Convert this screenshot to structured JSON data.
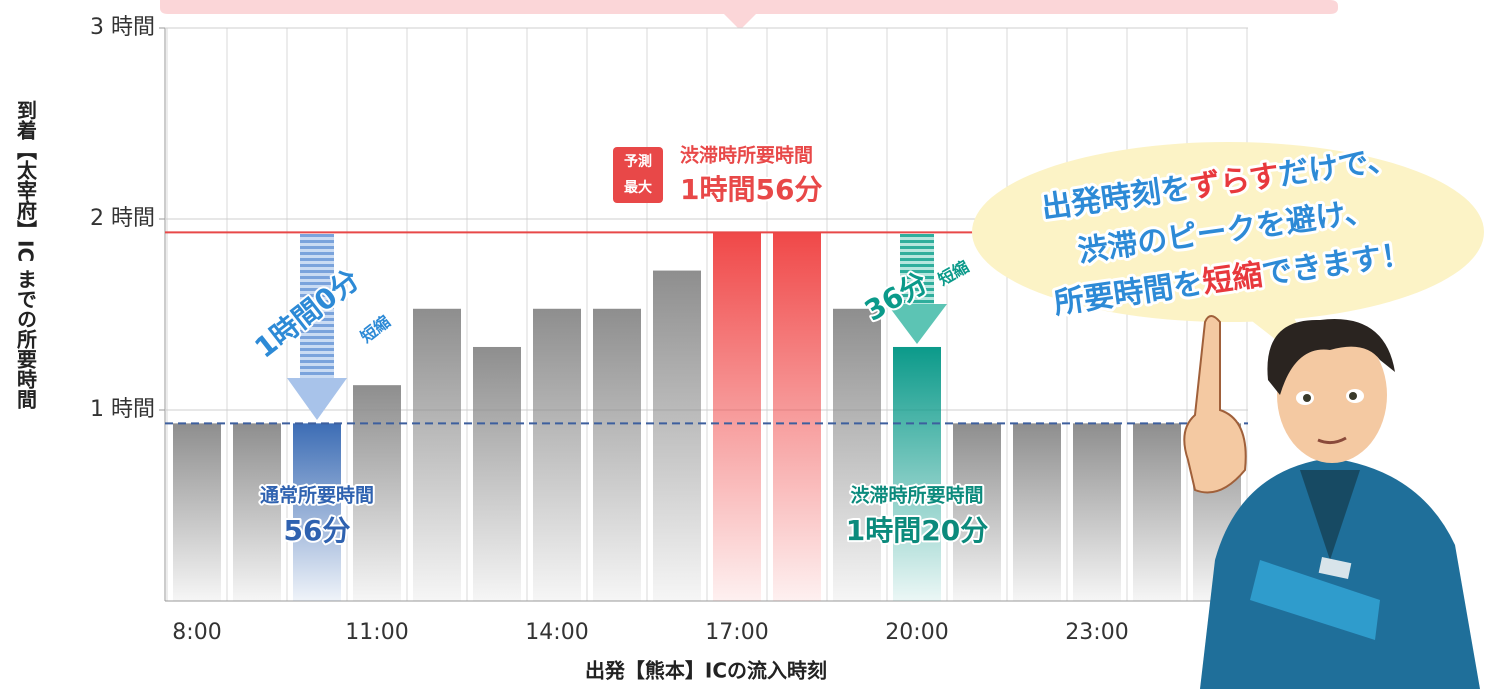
{
  "chart_data": {
    "type": "bar",
    "categories": [
      "8:00",
      null,
      null,
      "11:00",
      null,
      null,
      "14:00",
      null,
      null,
      "17:00",
      null,
      null,
      "20:00",
      null,
      null,
      "23:00",
      null,
      null
    ],
    "values": [
      0.93,
      0.93,
      0.93,
      1.13,
      1.53,
      1.33,
      1.53,
      1.53,
      1.73,
      1.93,
      1.93,
      1.53,
      1.33,
      0.93,
      0.93,
      0.93,
      0.93,
      0.93
    ],
    "colors": [
      "#8e8e8e",
      "#8e8e8e",
      "#3d6db5",
      "#8e8e8e",
      "#8e8e8e",
      "#8e8e8e",
      "#8e8e8e",
      "#8e8e8e",
      "#8e8e8e",
      "#f04848",
      "#f04848",
      "#8e8e8e",
      "#0b9a8a",
      "#8e8e8e",
      "#8e8e8e",
      "#8e8e8e",
      "#8e8e8e",
      "#8e8e8e"
    ],
    "ylim": [
      0,
      3
    ],
    "yticks": [
      {
        "value": 1,
        "label": "1 時間"
      },
      {
        "value": 2,
        "label": "2 時間"
      },
      {
        "value": 3,
        "label": "3 時間"
      }
    ],
    "grid": true,
    "y_label": "到着【太宰府】IC までの所要時間",
    "x_label": "出発【熊本】ICの流入時刻",
    "reference_lines": [
      {
        "value": 1.93,
        "color": "#e84848",
        "style": "solid"
      },
      {
        "value": 0.93,
        "color": "#3d5f9e",
        "style": "dashed"
      }
    ],
    "annotations": {
      "peak": {
        "badge": [
          "予測",
          "最大"
        ],
        "label": "渋滞時所要時間",
        "value": "1時間56分"
      },
      "normal": {
        "label": "通常所要時間",
        "value": "56分"
      },
      "congested": {
        "label": "渋滞時所要時間",
        "value": "1時間20分"
      },
      "saving_morning": {
        "value": "1時間0分",
        "label": "短縮"
      },
      "saving_evening": {
        "value": "36分",
        "label": "短縮"
      }
    },
    "bubble_color": "#2d8ad6",
    "bubble": [
      [
        {
          "text": "出発時刻を"
        },
        {
          "text": "ずらす",
          "color": "#e8383d"
        },
        {
          "text": "だけで、"
        }
      ],
      [
        {
          "text": "渋滞のピークを避け、"
        }
      ],
      [
        {
          "text": "所要時間を"
        },
        {
          "text": "短縮",
          "color": "#e8383d"
        },
        {
          "text": "できます！"
        }
      ]
    ]
  }
}
